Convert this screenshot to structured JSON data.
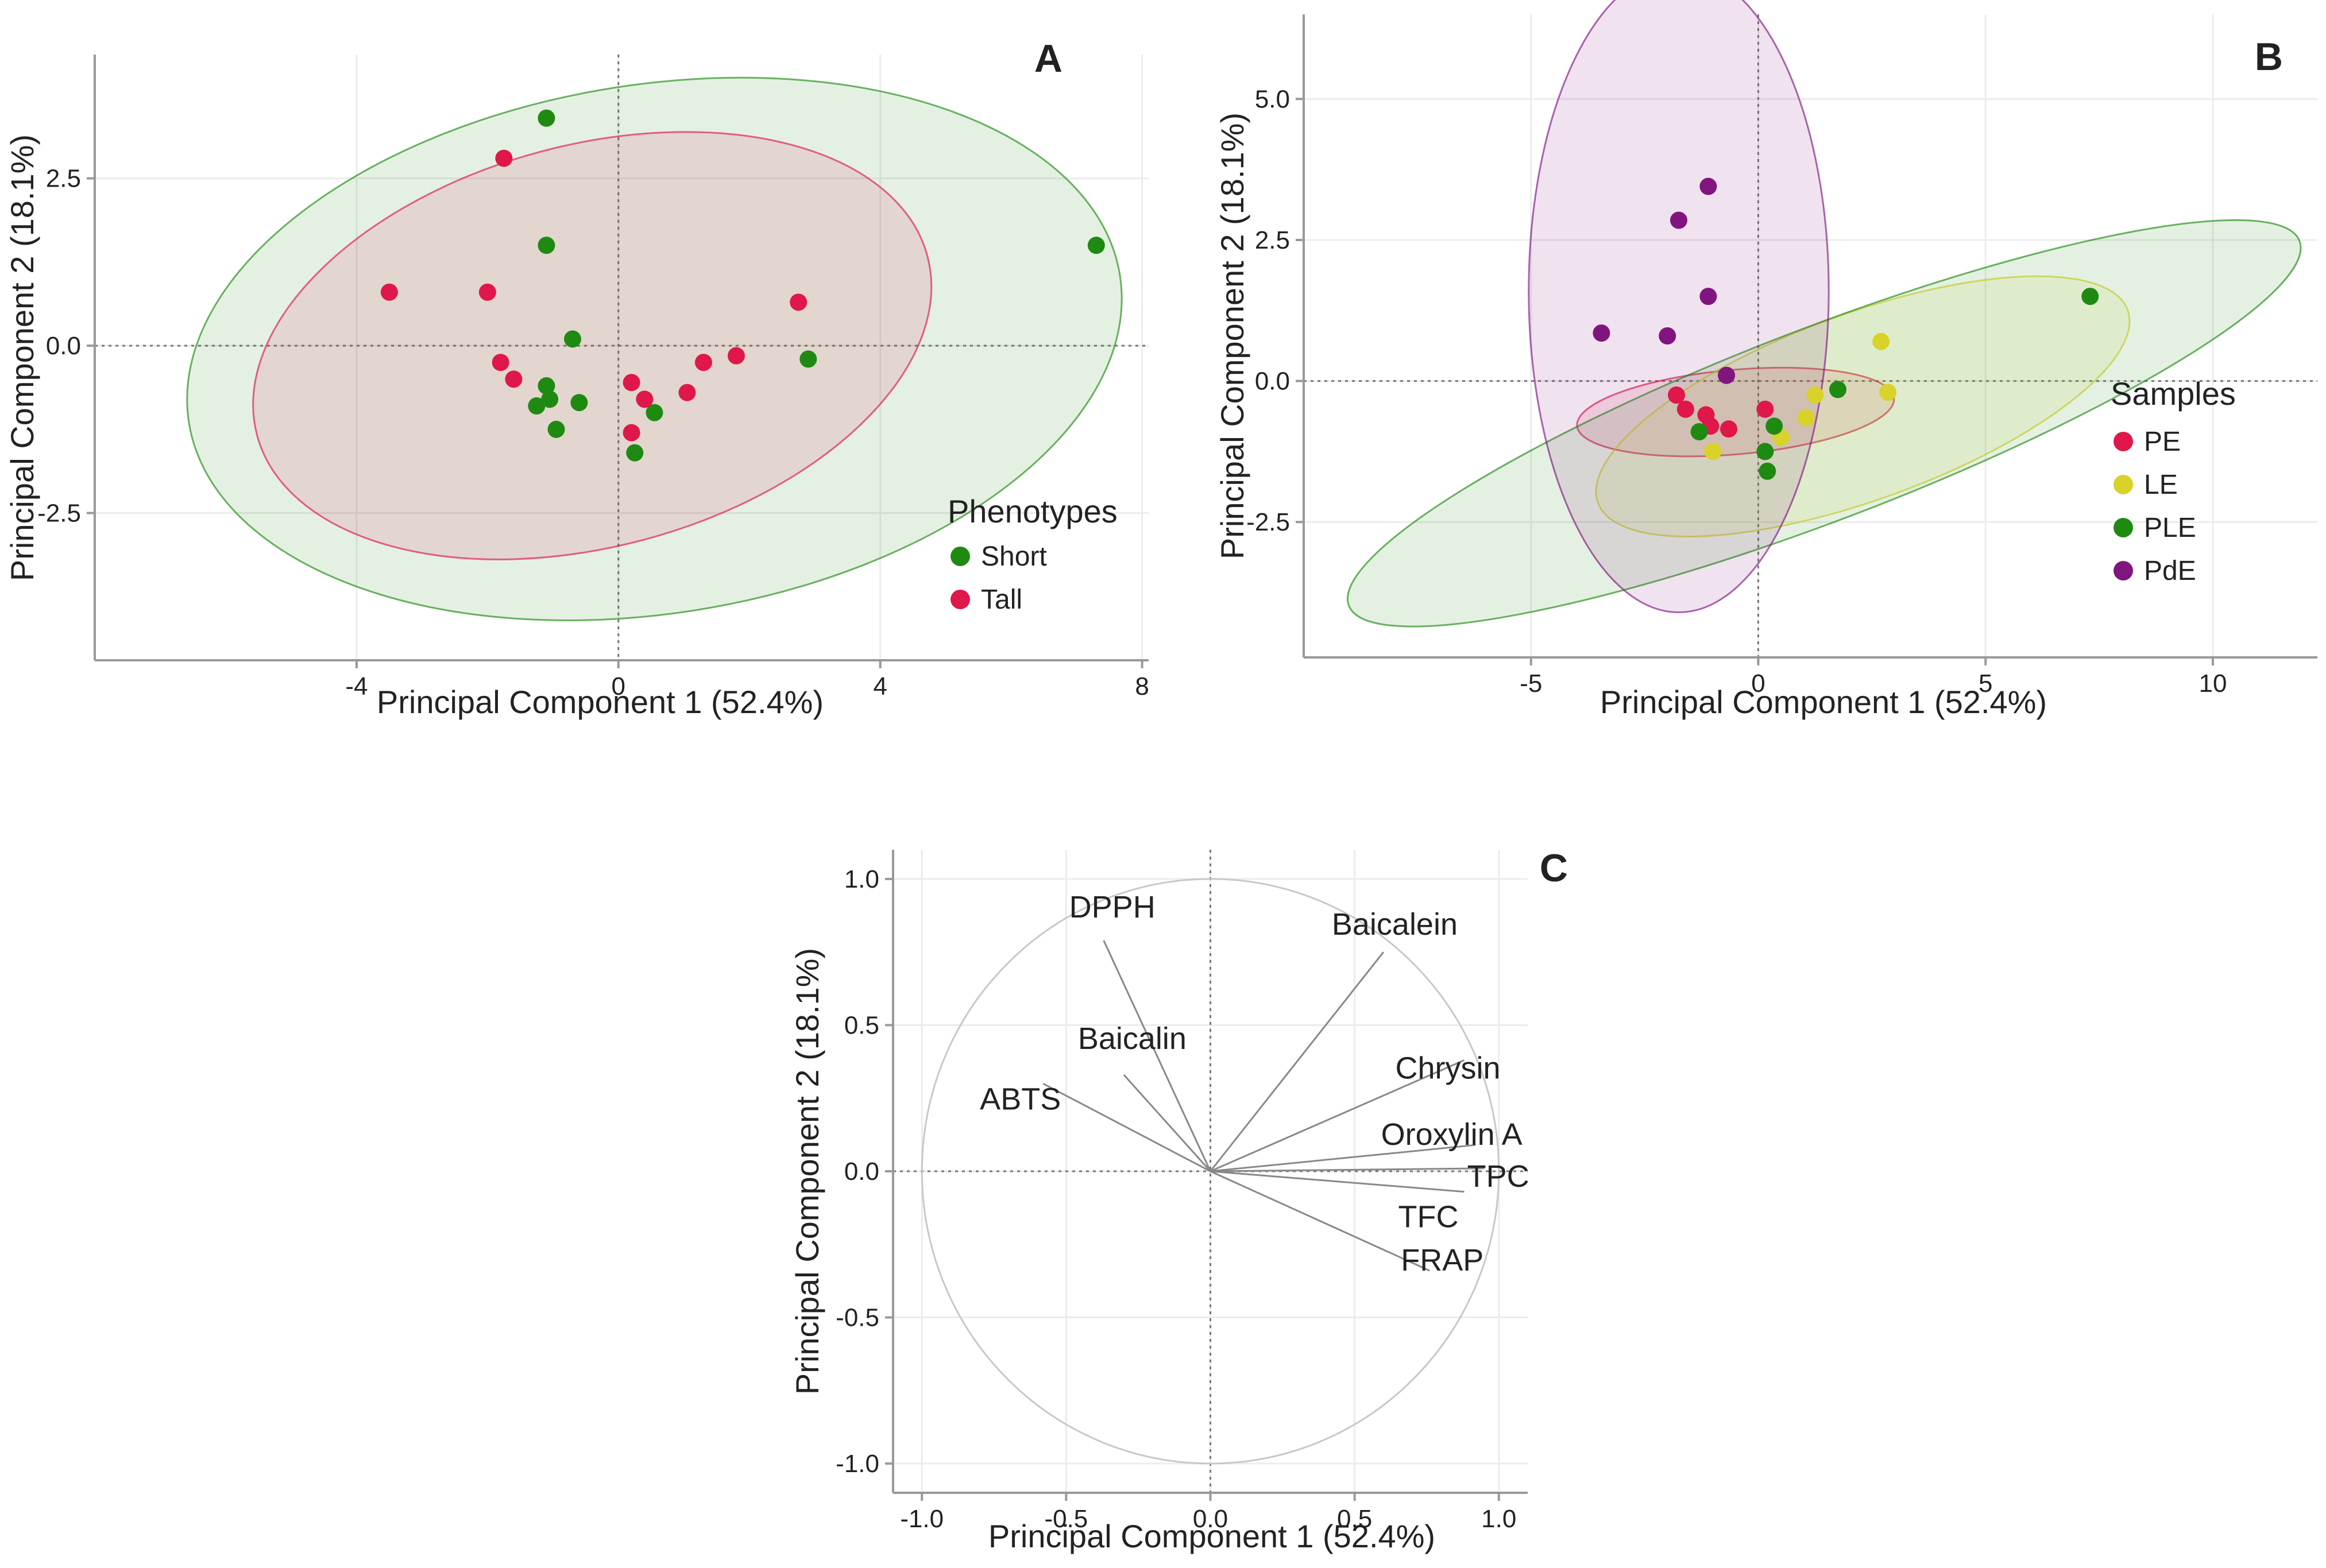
{
  "figure": {
    "description": "Three-panel principal component analysis figure"
  },
  "chart_data": [
    {
      "panel": "A",
      "type": "scatter",
      "xlabel": "Principal Component 1 (52.4%)",
      "ylabel": "Principal Component 2 (18.1%)",
      "xlim": [
        -8.0,
        8.1
      ],
      "ylim": [
        -4.7,
        4.35
      ],
      "xticks": [
        -4,
        0,
        4,
        8
      ],
      "xtick_labels": [
        "-4",
        "0",
        "4",
        "8"
      ],
      "yticks": [
        2.5,
        0.0,
        -2.5
      ],
      "ytick_labels": [
        "2.5",
        "0.0",
        "-2.5"
      ],
      "legend_title": "Phenotypes",
      "legend_position": "right",
      "series": [
        {
          "name": "Short",
          "color": "#1f8a12",
          "points": [
            [
              -1.1,
              3.4
            ],
            [
              -1.1,
              1.5
            ],
            [
              -0.7,
              0.1
            ],
            [
              -1.1,
              -0.6
            ],
            [
              -1.05,
              -0.8
            ],
            [
              -1.25,
              -0.9
            ],
            [
              -0.6,
              -0.85
            ],
            [
              -0.95,
              -1.25
            ],
            [
              0.55,
              -1.0
            ],
            [
              0.25,
              -1.6
            ],
            [
              2.9,
              -0.2
            ],
            [
              7.3,
              1.5
            ]
          ],
          "ellipse": {
            "cx": 0.55,
            "cy": -0.05,
            "rx": 7.2,
            "ry": 3.95,
            "angle_deg": -9
          }
        },
        {
          "name": "Tall",
          "color": "#e0174a",
          "points": [
            [
              -1.75,
              2.8
            ],
            [
              -3.5,
              0.8
            ],
            [
              -2.0,
              0.8
            ],
            [
              -1.8,
              -0.25
            ],
            [
              -1.6,
              -0.5
            ],
            [
              0.2,
              -0.55
            ],
            [
              0.4,
              -0.8
            ],
            [
              0.2,
              -1.3
            ],
            [
              1.05,
              -0.7
            ],
            [
              1.3,
              -0.25
            ],
            [
              1.8,
              -0.15
            ],
            [
              2.75,
              0.65
            ]
          ],
          "ellipse": {
            "cx": -0.4,
            "cy": 0.0,
            "rx": 5.3,
            "ry": 3.0,
            "angle_deg": -15
          }
        }
      ]
    },
    {
      "panel": "B",
      "type": "scatter",
      "xlabel": "Principal Component 1 (52.4%)",
      "ylabel": "Principal Component 2 (18.1%)",
      "xlim": [
        -10.0,
        12.3
      ],
      "ylim": [
        -4.9,
        6.5
      ],
      "xticks": [
        -5,
        0,
        5,
        10
      ],
      "xtick_labels": [
        "-5",
        "0",
        "5",
        "10"
      ],
      "yticks": [
        5.0,
        2.5,
        0.0,
        -2.5
      ],
      "ytick_labels": [
        "5.0",
        "2.5",
        "0.0",
        "-2.5"
      ],
      "legend_title": "Samples",
      "legend_position": "right",
      "series": [
        {
          "name": "PE",
          "color": "#e0174a",
          "points": [
            [
              -1.8,
              -0.25
            ],
            [
              -1.6,
              -0.5
            ],
            [
              -1.15,
              -0.6
            ],
            [
              -1.05,
              -0.8
            ],
            [
              -0.65,
              -0.85
            ],
            [
              0.15,
              -0.5
            ]
          ],
          "ellipse": {
            "cx": -0.5,
            "cy": -0.55,
            "rx": 3.5,
            "ry": 0.75,
            "angle_deg": -5
          }
        },
        {
          "name": "LE",
          "color": "#d8d22a",
          "points": [
            [
              1.25,
              -0.25
            ],
            [
              2.7,
              0.7
            ],
            [
              2.85,
              -0.2
            ],
            [
              1.05,
              -0.65
            ],
            [
              0.5,
              -1.0
            ],
            [
              -1.0,
              -1.25
            ]
          ],
          "ellipse": {
            "cx": 2.3,
            "cy": -0.45,
            "rx": 6.2,
            "ry": 1.65,
            "angle_deg": -20
          }
        },
        {
          "name": "PLE",
          "color": "#1f8a12",
          "points": [
            [
              7.3,
              1.5
            ],
            [
              1.75,
              -0.15
            ],
            [
              0.35,
              -0.8
            ],
            [
              -1.3,
              -0.9
            ],
            [
              0.15,
              -1.25
            ],
            [
              0.2,
              -1.6
            ]
          ],
          "ellipse": {
            "cx": 1.45,
            "cy": -0.75,
            "rx": 11.2,
            "ry": 1.7,
            "angle_deg": -21
          }
        },
        {
          "name": "PdE",
          "color": "#80157f",
          "points": [
            [
              -1.1,
              3.45
            ],
            [
              -1.75,
              2.85
            ],
            [
              -1.1,
              1.5
            ],
            [
              -3.45,
              0.85
            ],
            [
              -2.0,
              0.8
            ],
            [
              -0.7,
              0.1
            ]
          ],
          "ellipse": {
            "cx": -1.75,
            "cy": 1.6,
            "rx": 3.3,
            "ry": 5.7,
            "angle_deg": 0
          }
        }
      ]
    },
    {
      "panel": "C",
      "type": "loadings",
      "xlabel": "Principal Component 1 (52.4%)",
      "ylabel": "Principal Component 2 (18.1%)",
      "xlim": [
        -1.1,
        1.1
      ],
      "ylim": [
        -1.1,
        1.1
      ],
      "xticks": [
        -1.0,
        -0.5,
        0.0,
        0.5,
        1.0
      ],
      "xtick_labels": [
        "-1.0",
        "-0.5",
        "0.0",
        "0.5",
        "1.0"
      ],
      "yticks": [
        1.0,
        0.5,
        0.0,
        -0.5,
        -1.0
      ],
      "ytick_labels": [
        "1.0",
        "0.5",
        "0.0",
        "-0.5",
        "-1.0"
      ],
      "unit_circle": true,
      "vectors": [
        {
          "label": "DPPH",
          "x": -0.37,
          "y": 0.79
        },
        {
          "label": "Baicalein",
          "x": 0.6,
          "y": 0.75
        },
        {
          "label": "Baicalin",
          "x": -0.3,
          "y": 0.33
        },
        {
          "label": "ABTS",
          "x": -0.58,
          "y": 0.3
        },
        {
          "label": "Chrysin",
          "x": 0.88,
          "y": 0.38
        },
        {
          "label": "Oroxylin A",
          "x": 0.92,
          "y": 0.09
        },
        {
          "label": "TPC",
          "x": 0.95,
          "y": 0.01
        },
        {
          "label": "TFC",
          "x": 0.88,
          "y": -0.07
        },
        {
          "label": "FRAP",
          "x": 0.76,
          "y": -0.34
        }
      ]
    }
  ]
}
